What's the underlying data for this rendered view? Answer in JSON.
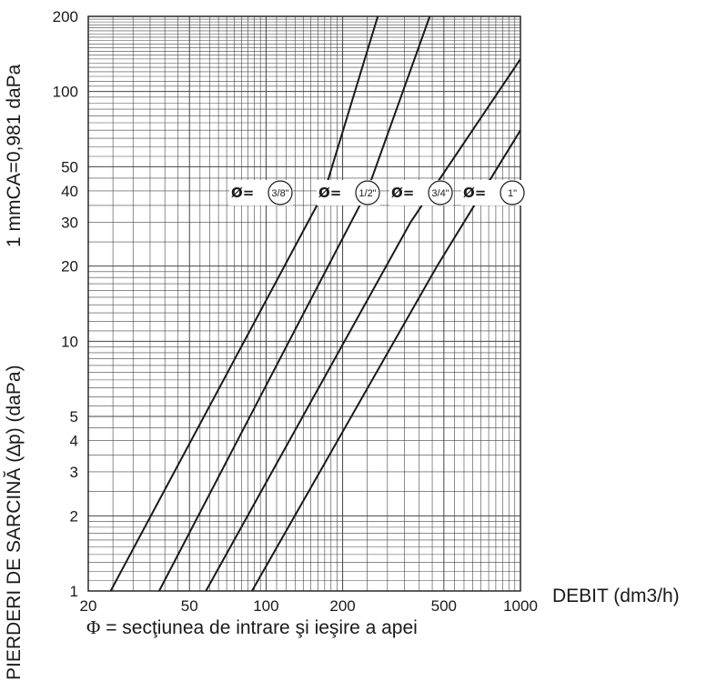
{
  "chart_data": {
    "type": "line",
    "title": "",
    "ylabel_lower": "PIERDERI DE SARCINĂ (∆p) (daPa)",
    "ylabel_upper": "1 mmCA=0,981 daPa",
    "xlabel": "DEBIT (dm3/h)",
    "x_scale": "log",
    "y_scale": "log",
    "xlim": [
      20,
      1000
    ],
    "ylim": [
      1,
      200
    ],
    "x_ticks": [
      {
        "value": 20,
        "label": "20"
      },
      {
        "value": 50,
        "label": "50"
      },
      {
        "value": 100,
        "label": "100"
      },
      {
        "value": 200,
        "label": "200"
      },
      {
        "value": 500,
        "label": "500"
      },
      {
        "value": 1000,
        "label": "1000"
      }
    ],
    "y_ticks": [
      {
        "value": 1,
        "label": "1"
      },
      {
        "value": 2,
        "label": "2"
      },
      {
        "value": 3,
        "label": "3"
      },
      {
        "value": 4,
        "label": "4"
      },
      {
        "value": 5,
        "label": "5"
      },
      {
        "value": 10,
        "label": "10"
      },
      {
        "value": 20,
        "label": "20"
      },
      {
        "value": 30,
        "label": "30"
      },
      {
        "value": 40,
        "label": "40"
      },
      {
        "value": 50,
        "label": "50"
      },
      {
        "value": 100,
        "label": "100"
      },
      {
        "value": 200,
        "label": "200"
      }
    ],
    "grid": true,
    "series": [
      {
        "name": "3/8\"",
        "points": [
          [
            24.5,
            1
          ],
          [
            170,
            40
          ],
          [
            275,
            200
          ]
        ]
      },
      {
        "name": "1/2\"",
        "points": [
          [
            38,
            1
          ],
          [
            250,
            40
          ],
          [
            440,
            200
          ]
        ]
      },
      {
        "name": "3/4\"",
        "points": [
          [
            58,
            1
          ],
          [
            370,
            30
          ],
          [
            1000,
            135
          ]
        ]
      },
      {
        "name": "1\"",
        "points": [
          [
            88,
            1
          ],
          [
            470,
            20
          ],
          [
            1000,
            70
          ]
        ]
      }
    ],
    "series_label_prefix": "Ø=",
    "series_label_position": "between 30 and 50 daPa"
  },
  "note": {
    "symbol": "Φ",
    "text": " = secţiunea de intrare şi ieşire a apei"
  },
  "colors": {
    "line": "#1a1a1a",
    "grid": "#444444",
    "background": "#ffffff"
  }
}
